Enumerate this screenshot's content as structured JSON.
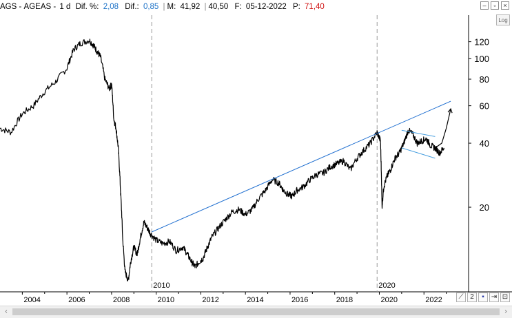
{
  "header": {
    "symbol": "AGS",
    "name_sep": " - ",
    "name": "AGEAS",
    "name_tail": " - ",
    "interval": "1 d",
    "dif_pct_label": "Dif. %:",
    "dif_pct_value": "2,08",
    "dif_label": "Dif.:",
    "dif_value": "0,85",
    "m_label": "M:",
    "m_value": "41,92",
    "m_value2": "40,50",
    "f_label": "F:",
    "f_value": "05-12-2022",
    "p_label": "P:",
    "p_value": "71,40"
  },
  "controls": {
    "log_label": "Log",
    "minimize_icon": "minimize-icon",
    "restore_icon": "restore-icon",
    "close_icon": "close-icon"
  },
  "colors": {
    "price": "#000000",
    "trendline": "#1f6fd0",
    "channel": "#4aa0e0",
    "dif_values": "#1e73c8",
    "p_value": "#d01010",
    "divider": "#9a9a9a"
  },
  "chart_data": {
    "type": "line",
    "title": "",
    "xlabel": "",
    "ylabel": "",
    "y_scale": "log",
    "ylim": [
      8,
      160
    ],
    "xlim": [
      2003.0,
      2024.0
    ],
    "y_ticks": [
      "120",
      "100",
      "80",
      "60",
      "40",
      "20"
    ],
    "y_tick_values": [
      120,
      100,
      80,
      60,
      40,
      20
    ],
    "x_ticks": [
      "2004",
      "2006",
      "2008",
      "2010",
      "2012",
      "2014",
      "2016",
      "2018",
      "2020",
      "2022"
    ],
    "x_tick_values": [
      2004,
      2006,
      2008,
      2010,
      2012,
      2014,
      2016,
      2018,
      2020,
      2022
    ],
    "dividers": [
      {
        "x": 2009.8,
        "label": "2010"
      },
      {
        "x": 2019.9,
        "label": "2020"
      }
    ],
    "grid": false,
    "series": [
      {
        "x": [
          2003.0,
          2003.5,
          2004.0,
          2004.5,
          2005.0,
          2005.5,
          2006.0,
          2006.3,
          2006.6,
          2007.0,
          2007.2,
          2007.35,
          2007.5,
          2007.7,
          2007.9,
          2008.0,
          2008.1,
          2008.2,
          2008.3,
          2008.4,
          2008.5,
          2008.6,
          2008.75,
          2008.85,
          2009.0,
          2009.15,
          2009.3,
          2009.45,
          2009.6,
          2009.75,
          2010.0,
          2010.3,
          2010.6,
          2010.9,
          2011.2,
          2011.4,
          2011.6,
          2011.75,
          2011.9,
          2012.1,
          2012.3,
          2012.5,
          2012.8,
          2013.1,
          2013.4,
          2013.7,
          2014.0,
          2014.3,
          2014.6,
          2014.9,
          2015.2,
          2015.5,
          2015.7,
          2015.9,
          2016.1,
          2016.3,
          2016.6,
          2016.9,
          2017.2,
          2017.5,
          2017.8,
          2018.1,
          2018.4,
          2018.7,
          2019.0,
          2019.3,
          2019.6,
          2019.9,
          2020.05,
          2020.12,
          2020.2,
          2020.35,
          2020.5,
          2020.7,
          2020.9,
          2021.1,
          2021.3,
          2021.5,
          2021.7,
          2021.9,
          2022.1,
          2022.3,
          2022.5,
          2022.7,
          2022.9
        ],
        "values": [
          47,
          45,
          55,
          60,
          70,
          78,
          90,
          110,
          118,
          122,
          115,
          108,
          102,
          80,
          72,
          76,
          52,
          47,
          38,
          24,
          14,
          10,
          9,
          11,
          13,
          12,
          14.5,
          17,
          16,
          15,
          14,
          13.5,
          13.8,
          12.5,
          13,
          12,
          11,
          10.5,
          11,
          11.5,
          13,
          14.5,
          16,
          17.5,
          19,
          19.5,
          18.5,
          19.5,
          22,
          24,
          27,
          26,
          24,
          23,
          22.5,
          24,
          25,
          27,
          28.5,
          29,
          31,
          32,
          33,
          30,
          34,
          37,
          40,
          45,
          41,
          20,
          25,
          28,
          30,
          34,
          36,
          40,
          46,
          44,
          40,
          41,
          42,
          39,
          38,
          36,
          38
        ]
      }
    ],
    "trendline": {
      "x": [
        2009.8,
        2023.2
      ],
      "values": [
        15.3,
        63
      ]
    },
    "channel_upper": {
      "x": [
        2021.0,
        2022.5
      ],
      "values": [
        46,
        43
      ]
    },
    "channel_lower": {
      "x": [
        2021.0,
        2022.5
      ],
      "values": [
        38,
        34
      ]
    },
    "projection": {
      "x": [
        2022.5,
        2022.8,
        2023.0,
        2023.2
      ],
      "values": [
        38,
        40,
        47,
        58
      ]
    }
  }
}
